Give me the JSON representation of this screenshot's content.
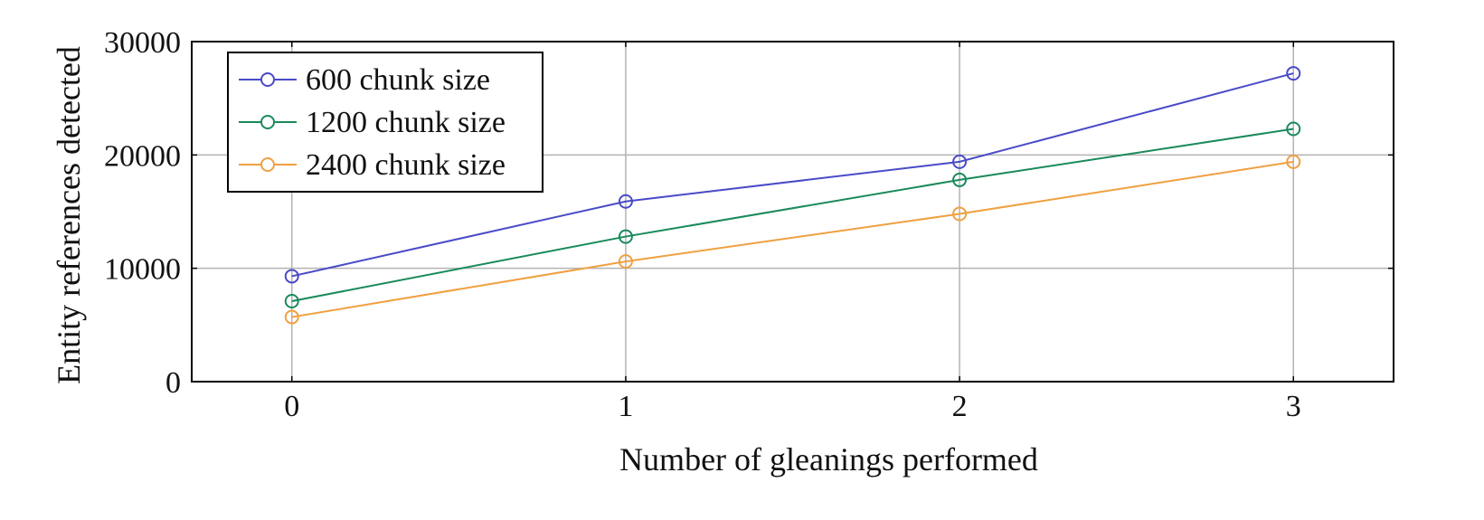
{
  "chart_data": {
    "type": "line",
    "title": "",
    "xlabel": "Number of gleanings performed",
    "ylabel": "Entity references detected",
    "x": [
      0,
      1,
      2,
      3
    ],
    "x_ticks": [
      "0",
      "1",
      "2",
      "3"
    ],
    "y_ticks": [
      "0",
      "10000",
      "20000",
      "30000"
    ],
    "xlim": [
      -0.3,
      3.3
    ],
    "ylim": [
      0,
      30000
    ],
    "grid": true,
    "legend_position": "top-left",
    "series": [
      {
        "name": "600 chunk size",
        "color": "#4a4ac8",
        "values": [
          9300,
          15900,
          19400,
          27200
        ]
      },
      {
        "name": "1200 chunk size",
        "color": "#1a8a5a",
        "values": [
          7100,
          12800,
          17800,
          22300
        ]
      },
      {
        "name": "2400 chunk size",
        "color": "#f0a040",
        "values": [
          5700,
          10600,
          14800,
          19400
        ]
      }
    ]
  }
}
